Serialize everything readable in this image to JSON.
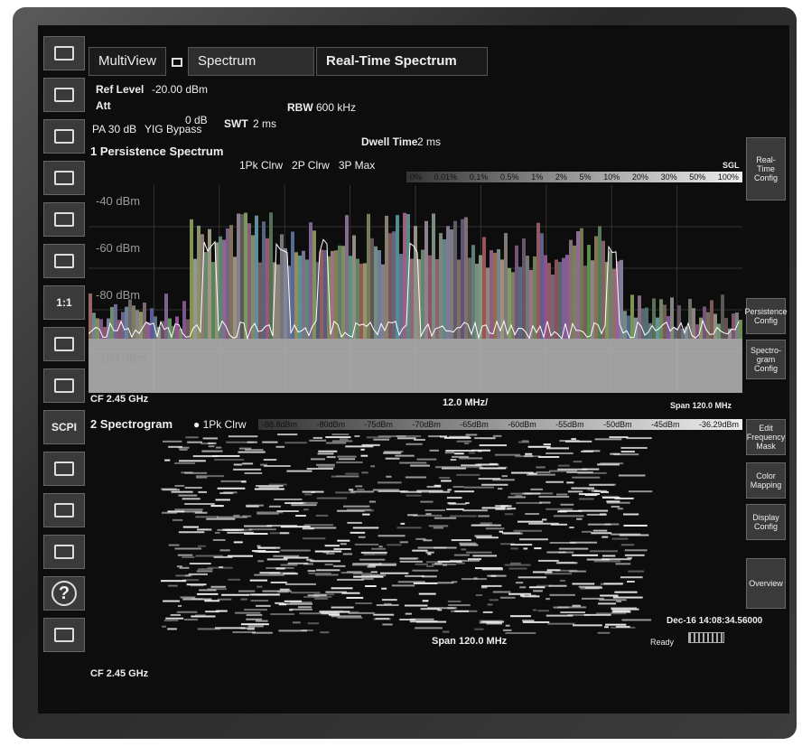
{
  "toolbar": {
    "zoom_label": "1:1",
    "scpi": "SCPI",
    "help": "?"
  },
  "tabs": [
    "MultiView",
    "Spectrum",
    "Real-Time Spectrum"
  ],
  "settings": {
    "ref_level_label": "Ref Level",
    "ref_level": "-20.00 dBm",
    "att_label": "Att",
    "att": "0 dB",
    "swt_label": "SWT",
    "swt": "2 ms",
    "rbw_label": "RBW",
    "rbw": "600 kHz",
    "preamp": "PA 30 dB",
    "yig": "YIG Bypass",
    "dwell_label": "Dwell Time",
    "dwell": "2 ms",
    "mode": "SGL"
  },
  "persistence": {
    "title": "1 Persistence Spectrum",
    "traces": [
      "1Pk Clrw",
      "2P Clrw",
      "3P Max"
    ],
    "scale": [
      "0%",
      "0.01%",
      "0.1%",
      "0.5%",
      "1%",
      "2%",
      "5%",
      "10%",
      "20%",
      "30%",
      "50%",
      "100%"
    ],
    "levels": [
      "-40 dBm",
      "-60 dBm",
      "-80 dBm",
      "-100 dBm"
    ],
    "center": "CF 2.45 GHz",
    "div": "12.0 MHz/",
    "span": "Span 120.0 MHz"
  },
  "spectrogram": {
    "title": "2 Spectrogram",
    "trace": "1Pk Clrw",
    "scale": [
      "-88.8dBm",
      "-80dBm",
      "-75dBm",
      "-70dBm",
      "-65dBm",
      "-60dBm",
      "-55dBm",
      "-50dBm",
      "-45dBm",
      "-36.29dBm"
    ],
    "timestamp": "Dec-16 14:08:34.56000",
    "center": "CF 2.45 GHz",
    "span": "Span 120.0 MHz"
  },
  "status": "Ready",
  "softkeys": [
    "Real-Time Config",
    "Persistence Config",
    "Spectro-gram Config",
    "Edit Frequency Mask",
    "Color Mapping",
    "Display Config",
    "Overview"
  ]
}
